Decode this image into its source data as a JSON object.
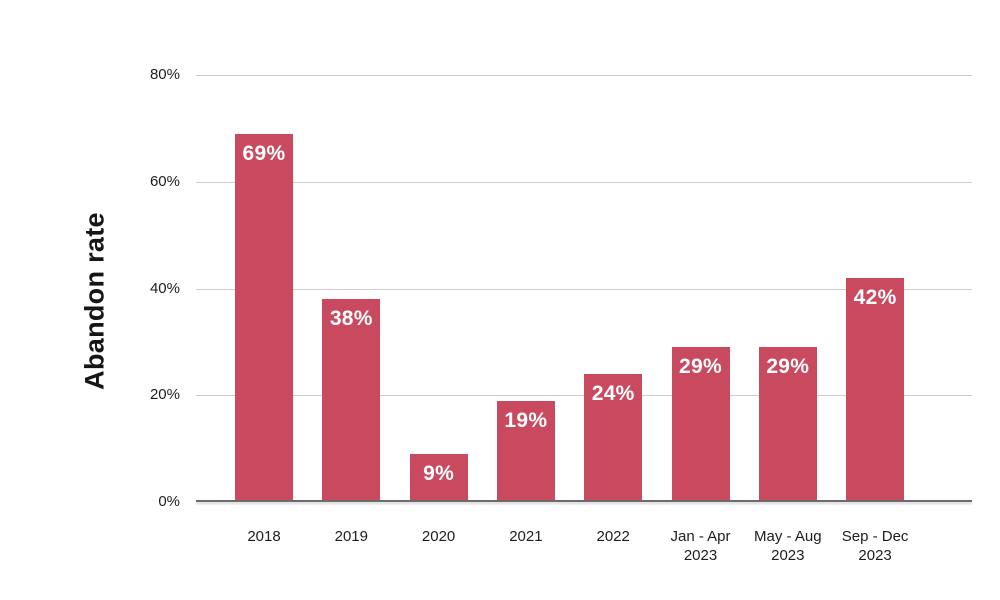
{
  "chart_data": {
    "type": "bar",
    "title": "",
    "xlabel": "",
    "ylabel": "Abandon rate",
    "categories": [
      "2018",
      "2019",
      "2020",
      "2021",
      "2022",
      "Jan - Apr\n2023",
      "May - Aug\n2023",
      "Sep - Dec\n2023"
    ],
    "values": [
      69,
      38,
      9,
      19,
      24,
      29,
      29,
      42
    ],
    "bar_labels": [
      "69%",
      "38%",
      "9%",
      "19%",
      "24%",
      "29%",
      "29%",
      "42%"
    ],
    "y_ticks": [
      {
        "value": 80,
        "label": "80%"
      },
      {
        "value": 60,
        "label": "60%"
      },
      {
        "value": 40,
        "label": "40%"
      },
      {
        "value": 20,
        "label": "20%"
      },
      {
        "value": 0,
        "label": "0%"
      }
    ],
    "ylim": [
      0,
      80
    ],
    "grid": true,
    "legend": false,
    "colors": {
      "bar": "#c9495f",
      "bar_label": "#ffffff",
      "gridline": "#cdcdcd",
      "axis_line": "#6b6b6b",
      "tick_text": "#1d1d1d",
      "axis_title_text": "#161616",
      "background": "#ffffff"
    }
  }
}
